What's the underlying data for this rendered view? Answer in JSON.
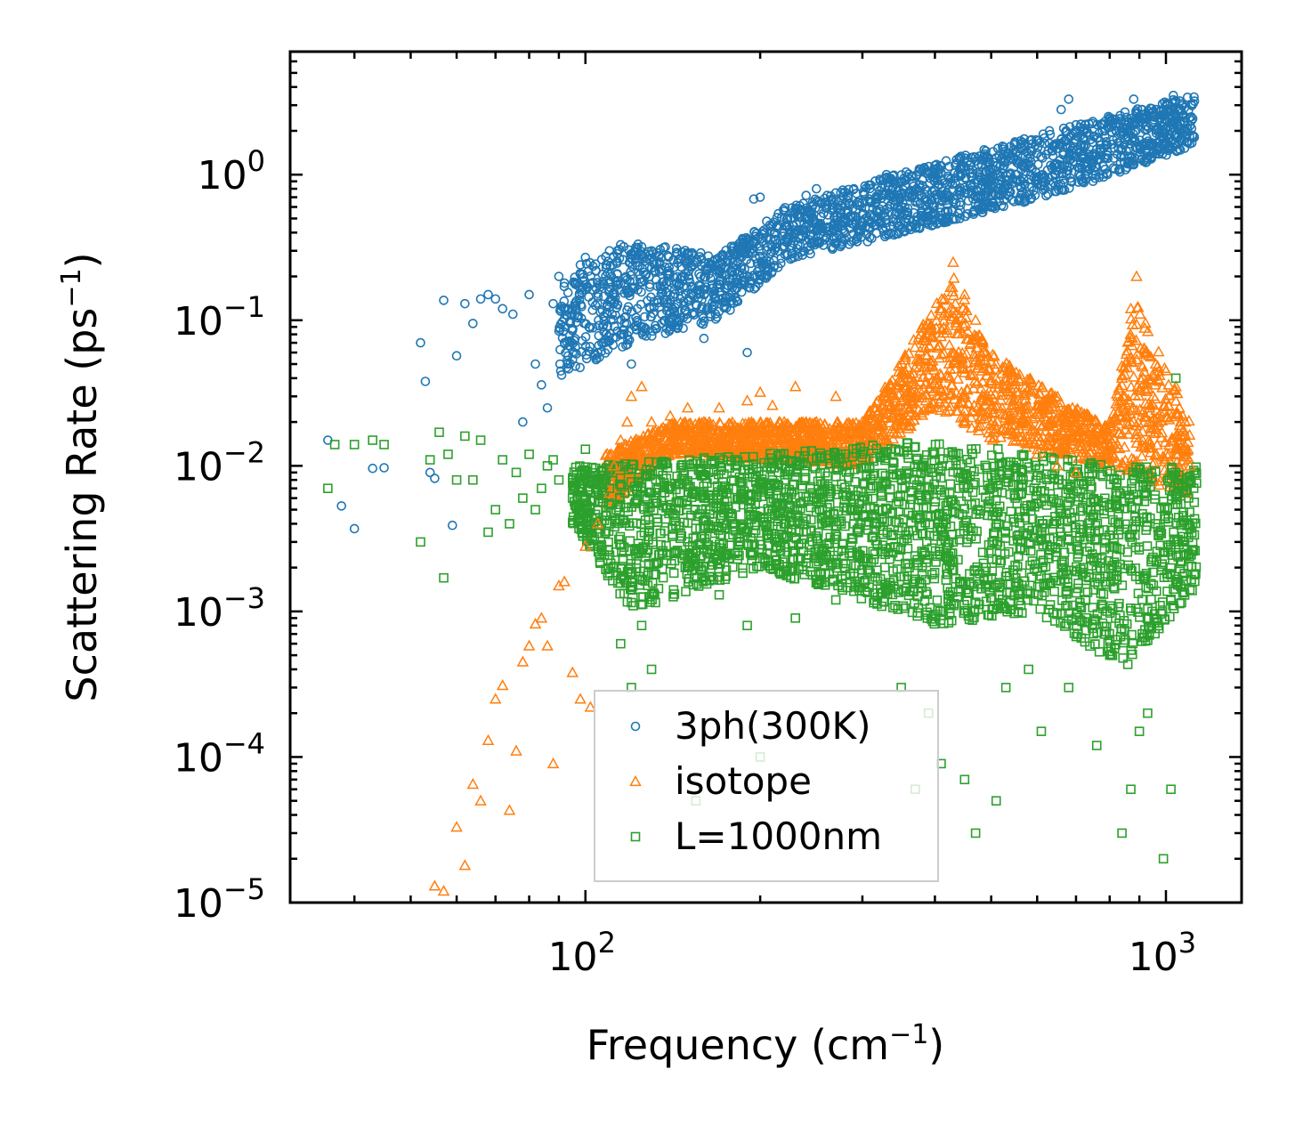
{
  "chart_data": {
    "type": "scatter",
    "title": "",
    "xlabel": "Frequency (cm",
    "xlabel_sup": "−1",
    "xlabel_end": ")",
    "ylabel": "Scattering Rate (ps",
    "ylabel_sup": "−1",
    "ylabel_end": ")",
    "xscale": "log",
    "yscale": "log",
    "xlim": [
      31,
      1350
    ],
    "ylim": [
      1e-05,
      7
    ],
    "x_ticks": [
      {
        "value": 100,
        "base": "10",
        "exp": "2"
      },
      {
        "value": 1000,
        "base": "10",
        "exp": "3"
      }
    ],
    "y_ticks": [
      {
        "value": 1,
        "base": "10",
        "exp": "0"
      },
      {
        "value": 0.1,
        "base": "10",
        "exp": "−1"
      },
      {
        "value": 0.01,
        "base": "10",
        "exp": "−2"
      },
      {
        "value": 0.001,
        "base": "10",
        "exp": "−3"
      },
      {
        "value": 0.0001,
        "base": "10",
        "exp": "−4"
      },
      {
        "value": 1e-05,
        "base": "10",
        "exp": "−5"
      }
    ],
    "legend_position": "lower-center",
    "series": [
      {
        "name": "3ph(300K)",
        "marker": "circle",
        "color": "#1f77b4",
        "points": [
          [
            36,
            0.015
          ],
          [
            38,
            0.0053
          ],
          [
            40,
            0.0037
          ],
          [
            43,
            0.0096
          ],
          [
            45,
            0.0097
          ],
          [
            52,
            0.07
          ],
          [
            53,
            0.038
          ],
          [
            54,
            0.009
          ],
          [
            55,
            0.0082
          ],
          [
            57,
            0.137
          ],
          [
            59,
            0.0039
          ],
          [
            60,
            0.057
          ],
          [
            62,
            0.13
          ],
          [
            64,
            0.095
          ],
          [
            66,
            0.14
          ],
          [
            68,
            0.15
          ],
          [
            70,
            0.14
          ],
          [
            72,
            0.12
          ],
          [
            75,
            0.11
          ],
          [
            78,
            0.02
          ],
          [
            80,
            0.15
          ],
          [
            82,
            0.05
          ],
          [
            84,
            0.036
          ],
          [
            86,
            0.025
          ],
          [
            88,
            0.13
          ],
          [
            90,
            0.2
          ],
          [
            92,
            0.18
          ],
          [
            95,
            0.085
          ],
          [
            98,
            0.24
          ],
          [
            100,
            0.27
          ],
          [
            105,
            0.06
          ],
          [
            110,
            0.3
          ],
          [
            115,
            0.33
          ],
          [
            120,
            0.05
          ],
          [
            125,
            0.32
          ],
          [
            130,
            0.3
          ],
          [
            140,
            0.09
          ],
          [
            150,
            0.25
          ],
          [
            160,
            0.075
          ],
          [
            165,
            0.12
          ],
          [
            170,
            0.14
          ],
          [
            180,
            0.23
          ],
          [
            190,
            0.06
          ],
          [
            195,
            0.68
          ],
          [
            200,
            0.7
          ],
          [
            210,
            0.32
          ],
          [
            220,
            0.4
          ],
          [
            230,
            0.55
          ],
          [
            240,
            0.72
          ],
          [
            250,
            0.8
          ],
          [
            270,
            0.75
          ],
          [
            290,
            0.8
          ],
          [
            310,
            0.85
          ],
          [
            330,
            1.0
          ],
          [
            350,
            0.55
          ],
          [
            370,
            0.65
          ],
          [
            390,
            1.05
          ],
          [
            410,
            0.5
          ],
          [
            430,
            0.65
          ],
          [
            450,
            0.75
          ],
          [
            480,
            0.95
          ],
          [
            510,
            1.3
          ],
          [
            540,
            1.0
          ],
          [
            570,
            1.6
          ],
          [
            600,
            1.4
          ],
          [
            630,
            2.0
          ],
          [
            660,
            2.8
          ],
          [
            680,
            3.3
          ],
          [
            700,
            2.2
          ],
          [
            730,
            1.2
          ],
          [
            760,
            1.5
          ],
          [
            790,
            1.6
          ],
          [
            820,
            2.0
          ],
          [
            850,
            2.3
          ],
          [
            880,
            3.3
          ],
          [
            910,
            2.8
          ],
          [
            950,
            2.5
          ],
          [
            990,
            2.6
          ],
          [
            1030,
            3.5
          ],
          [
            1060,
            2.8
          ],
          [
            1090,
            2.2
          ],
          [
            1120,
            3.2
          ]
        ]
      },
      {
        "name": "isotope",
        "marker": "triangle",
        "color": "#ff7f0e",
        "points": [
          [
            55,
            1.3e-05
          ],
          [
            57,
            1.2e-05
          ],
          [
            60,
            3.3e-05
          ],
          [
            62,
            1.8e-05
          ],
          [
            64,
            6.5e-05
          ],
          [
            66,
            5e-05
          ],
          [
            68,
            0.00013
          ],
          [
            70,
            0.00025
          ],
          [
            72,
            0.00031
          ],
          [
            74,
            4.3e-05
          ],
          [
            76,
            0.00011
          ],
          [
            78,
            0.00045
          ],
          [
            80,
            0.00058
          ],
          [
            82,
            0.00082
          ],
          [
            84,
            0.0009
          ],
          [
            86,
            0.00058
          ],
          [
            88,
            9e-05
          ],
          [
            90,
            0.0015
          ],
          [
            92,
            0.0016
          ],
          [
            95,
            0.00038
          ],
          [
            98,
            0.00025
          ],
          [
            100,
            0.0028
          ],
          [
            102,
            0.00022
          ],
          [
            105,
            0.004
          ],
          [
            110,
            0.0065
          ],
          [
            112,
            0.01
          ],
          [
            115,
            0.015
          ],
          [
            118,
            0.02
          ],
          [
            120,
            0.03
          ],
          [
            125,
            0.035
          ],
          [
            130,
            0.02
          ],
          [
            140,
            0.022
          ],
          [
            150,
            0.025
          ],
          [
            160,
            0.02
          ],
          [
            170,
            0.025
          ],
          [
            180,
            0.018
          ],
          [
            190,
            0.028
          ],
          [
            200,
            0.032
          ],
          [
            210,
            0.026
          ],
          [
            220,
            0.02
          ],
          [
            230,
            0.035
          ],
          [
            250,
            0.02
          ],
          [
            270,
            0.03
          ],
          [
            300,
            0.02
          ],
          [
            320,
            0.017
          ],
          [
            350,
            0.02
          ],
          [
            370,
            0.03
          ],
          [
            390,
            0.05
          ],
          [
            410,
            0.12
          ],
          [
            430,
            0.25
          ],
          [
            450,
            0.15
          ],
          [
            470,
            0.1
          ],
          [
            490,
            0.06
          ],
          [
            510,
            0.04
          ],
          [
            540,
            0.025
          ],
          [
            570,
            0.015
          ],
          [
            600,
            0.012
          ],
          [
            650,
            0.01
          ],
          [
            700,
            0.009
          ],
          [
            760,
            0.015
          ],
          [
            800,
            0.02
          ],
          [
            840,
            0.04
          ],
          [
            870,
            0.12
          ],
          [
            890,
            0.2
          ],
          [
            920,
            0.06
          ],
          [
            960,
            0.05
          ],
          [
            1000,
            0.045
          ],
          [
            1040,
            0.035
          ],
          [
            1080,
            0.02
          ],
          [
            1100,
            0.01
          ]
        ]
      },
      {
        "name": "L=1000nm",
        "marker": "square",
        "color": "#2ca02c",
        "points": [
          [
            36,
            0.007
          ],
          [
            37,
            0.014
          ],
          [
            40,
            0.014
          ],
          [
            43,
            0.015
          ],
          [
            45,
            0.014
          ],
          [
            52,
            0.003
          ],
          [
            54,
            0.011
          ],
          [
            56,
            0.017
          ],
          [
            57,
            0.0017
          ],
          [
            58,
            0.012
          ],
          [
            60,
            0.008
          ],
          [
            62,
            0.016
          ],
          [
            64,
            0.008
          ],
          [
            66,
            0.015
          ],
          [
            68,
            0.0035
          ],
          [
            70,
            0.005
          ],
          [
            72,
            0.011
          ],
          [
            74,
            0.004
          ],
          [
            76,
            0.009
          ],
          [
            78,
            0.006
          ],
          [
            80,
            0.012
          ],
          [
            82,
            0.005
          ],
          [
            84,
            0.007
          ],
          [
            86,
            0.01
          ],
          [
            88,
            0.011
          ],
          [
            90,
            0.008
          ],
          [
            95,
            0.006
          ],
          [
            100,
            0.013
          ],
          [
            105,
            0.005
          ],
          [
            110,
            0.007
          ],
          [
            115,
            0.0006
          ],
          [
            120,
            0.0003
          ],
          [
            125,
            0.0008
          ],
          [
            130,
            0.0004
          ],
          [
            140,
            0.005
          ],
          [
            150,
            0.002
          ],
          [
            155,
            5e-05
          ],
          [
            160,
            0.006
          ],
          [
            170,
            0.0013
          ],
          [
            180,
            0.004
          ],
          [
            190,
            0.0008
          ],
          [
            200,
            0.0001
          ],
          [
            210,
            0.008
          ],
          [
            220,
            0.004
          ],
          [
            230,
            0.0009
          ],
          [
            250,
            0.006
          ],
          [
            270,
            0.0012
          ],
          [
            290,
            0.004
          ],
          [
            310,
            0.007
          ],
          [
            330,
            0.0014
          ],
          [
            350,
            0.0003
          ],
          [
            370,
            6e-05
          ],
          [
            390,
            0.0002
          ],
          [
            410,
            9e-05
          ],
          [
            430,
            0.003
          ],
          [
            450,
            7e-05
          ],
          [
            470,
            3e-05
          ],
          [
            490,
            0.002
          ],
          [
            510,
            5e-05
          ],
          [
            530,
            0.0003
          ],
          [
            550,
            0.006
          ],
          [
            580,
            0.0004
          ],
          [
            610,
            0.00015
          ],
          [
            640,
            0.004
          ],
          [
            680,
            0.0003
          ],
          [
            720,
            0.002
          ],
          [
            760,
            0.00012
          ],
          [
            800,
            0.0005
          ],
          [
            840,
            3e-05
          ],
          [
            870,
            6e-05
          ],
          [
            900,
            0.00015
          ],
          [
            930,
            0.0002
          ],
          [
            960,
            0.004
          ],
          [
            990,
            2e-05
          ],
          [
            1020,
            6e-05
          ],
          [
            1040,
            0.04
          ],
          [
            1070,
            0.003
          ],
          [
            1100,
            0.008
          ]
        ]
      }
    ],
    "dense_bands": [
      {
        "series": 0,
        "x_range": [
          90,
          1120
        ],
        "y_lower_at": [
          [
            90,
            0.04
          ],
          [
            120,
            0.07
          ],
          [
            170,
            0.1
          ],
          [
            220,
            0.25
          ],
          [
            400,
            0.45
          ],
          [
            700,
            0.8
          ],
          [
            1120,
            1.6
          ]
        ],
        "y_upper_at": [
          [
            90,
            0.2
          ],
          [
            120,
            0.35
          ],
          [
            170,
            0.28
          ],
          [
            220,
            0.6
          ],
          [
            400,
            1.2
          ],
          [
            700,
            2.2
          ],
          [
            1120,
            3.6
          ]
        ]
      },
      {
        "series": 1,
        "x_range": [
          108,
          1100
        ],
        "y_lower_at": [
          [
            108,
            0.005
          ],
          [
            140,
            0.012
          ],
          [
            300,
            0.01
          ],
          [
            400,
            0.025
          ],
          [
            500,
            0.015
          ],
          [
            800,
            0.01
          ],
          [
            1100,
            0.006
          ]
        ],
        "y_upper_at": [
          [
            108,
            0.012
          ],
          [
            140,
            0.02
          ],
          [
            300,
            0.02
          ],
          [
            430,
            0.2
          ],
          [
            500,
            0.06
          ],
          [
            800,
            0.018
          ],
          [
            880,
            0.15
          ],
          [
            1100,
            0.02
          ]
        ]
      },
      {
        "series": 2,
        "x_range": [
          95,
          1130
        ],
        "y_lower_at": [
          [
            95,
            0.004
          ],
          [
            120,
            0.001
          ],
          [
            200,
            0.002
          ],
          [
            400,
            0.0008
          ],
          [
            600,
            0.001
          ],
          [
            850,
            0.0004
          ],
          [
            1130,
            0.0015
          ]
        ],
        "y_upper_at": [
          [
            95,
            0.01
          ],
          [
            200,
            0.012
          ],
          [
            400,
            0.015
          ],
          [
            600,
            0.012
          ],
          [
            850,
            0.01
          ],
          [
            1130,
            0.01
          ]
        ]
      }
    ]
  }
}
